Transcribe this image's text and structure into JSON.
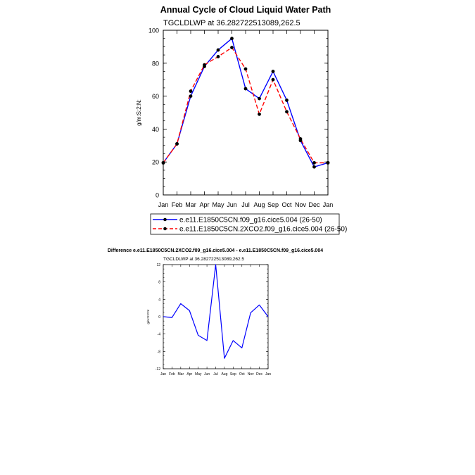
{
  "chart_data": [
    {
      "type": "line",
      "title": "Annual Cycle of Cloud Liquid Water Path",
      "subtitle": "TGCLDLWP at 36.282722513089,262.5",
      "ylabel": "g/m:S:2:N:",
      "ylim": [
        0,
        100
      ],
      "yticks": [
        0,
        20,
        40,
        60,
        80,
        100
      ],
      "categories": [
        "Jan",
        "Feb",
        "Mar",
        "Apr",
        "May",
        "Jun",
        "Jul",
        "Aug",
        "Sep",
        "Oct",
        "Nov",
        "Dec",
        "Jan"
      ],
      "legend_position": "bottom",
      "series": [
        {
          "name": "e.e11.E1850C5CN.f09_g16.cice5.004 (26-50)",
          "color": "#0000ff",
          "dash": "solid",
          "values": [
            19.5,
            31,
            60,
            78,
            88,
            95,
            64.5,
            58.5,
            75,
            57.5,
            33,
            17,
            19.5
          ]
        },
        {
          "name": "e.e11.E1850C5CN.2XCO2.f09_g16.cice5.004 (26-50)",
          "color": "#ff0000",
          "dash": "dashed",
          "values": [
            19.5,
            31,
            63,
            79,
            84,
            89.5,
            76.5,
            49,
            70,
            50.5,
            34,
            19.5,
            19.5
          ]
        }
      ]
    },
    {
      "type": "line",
      "title": "Difference e.e11.E1850C5CN.2XCO2.f09_g16.cice5.004 - e.e11.E1850C5CN.f09_g16.cice5.004",
      "subtitle": "TGCLDLWP at 36.282722513089,262.5",
      "ylabel": "g/m:S:2:N:",
      "ylim": [
        -12,
        12
      ],
      "yticks": [
        -12,
        -8,
        -4,
        0,
        4,
        8,
        12
      ],
      "categories": [
        "Jan",
        "Feb",
        "Mar",
        "Apr",
        "May",
        "Jun",
        "Jul",
        "Aug",
        "Sep",
        "Oct",
        "Nov",
        "Dec",
        "Jan"
      ],
      "series": [
        {
          "color": "#0000ff",
          "dash": "solid",
          "values": [
            0,
            -0.2,
            3,
            1.4,
            -4.3,
            -5.5,
            12,
            -9.6,
            -5.5,
            -7.2,
            0.9,
            2.7,
            0
          ]
        }
      ]
    }
  ]
}
